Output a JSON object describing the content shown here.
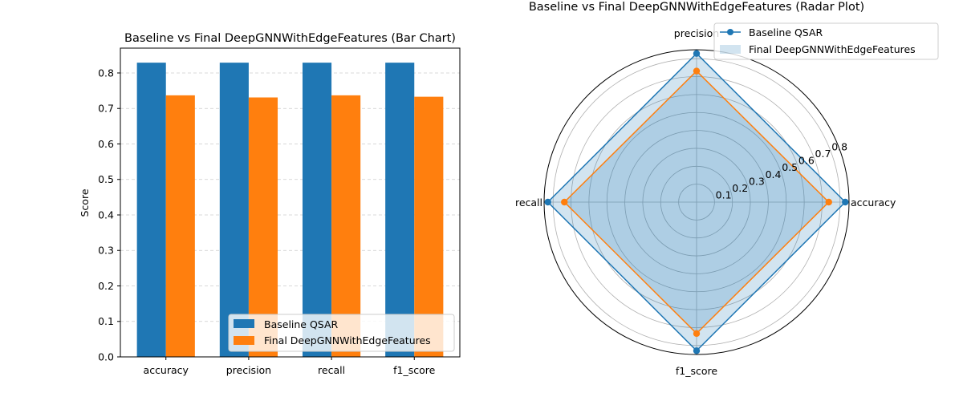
{
  "chart_data": [
    {
      "type": "bar",
      "title": "Baseline vs Final DeepGNNWithEdgeFeatures (Bar Chart)",
      "xlabel": "",
      "ylabel": "Score",
      "categories": [
        "accuracy",
        "precision",
        "recall",
        "f1_score"
      ],
      "series": [
        {
          "name": "Baseline QSAR",
          "values": [
            0.829,
            0.829,
            0.829,
            0.829
          ],
          "color": "#1f77b4"
        },
        {
          "name": "Final DeepGNNWithEdgeFeatures",
          "values": [
            0.737,
            0.731,
            0.737,
            0.733
          ],
          "color": "#ff7f0e"
        }
      ],
      "ylim": [
        0,
        0.87
      ],
      "yticks": [
        "0.0",
        "0.1",
        "0.2",
        "0.3",
        "0.4",
        "0.5",
        "0.6",
        "0.7",
        "0.8"
      ],
      "grid": "y-dashed",
      "legend": "lower-right"
    },
    {
      "type": "radar",
      "title": "Baseline vs Final DeepGNNWithEdgeFeatures (Radar Plot)",
      "categories": [
        "accuracy",
        "precision",
        "recall",
        "f1_score"
      ],
      "series": [
        {
          "name": "Baseline QSAR",
          "values": [
            0.829,
            0.829,
            0.829,
            0.829
          ],
          "color": "#1f77b4"
        },
        {
          "name": "Final DeepGNNWithEdgeFeatures",
          "values": [
            0.737,
            0.731,
            0.737,
            0.733
          ],
          "color": "#ff7f0e"
        }
      ],
      "rmax": 0.85,
      "rticks": [
        "0.1",
        "0.2",
        "0.3",
        "0.4",
        "0.5",
        "0.6",
        "0.7",
        "0.8"
      ],
      "legend": "top-right"
    }
  ]
}
